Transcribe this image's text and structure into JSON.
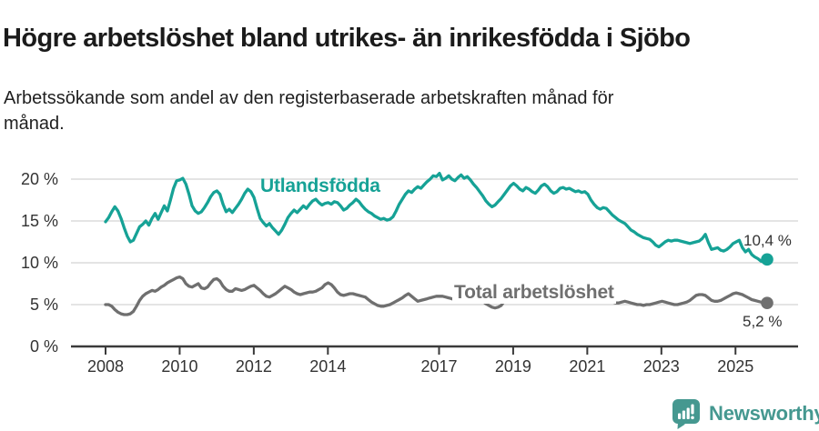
{
  "header": {
    "title": "Högre arbetslöshet bland utrikes- än inrikesfödda i Sjöbo",
    "subtitle_line1": "Arbetssökande som andel av den registerbaserade arbetskraften månad för",
    "subtitle_line2": "månad."
  },
  "chart_data": {
    "type": "line",
    "title": "Högre arbetslöshet bland utrikes- än inrikesfödda i Sjöbo",
    "subtitle": "Arbetssökande som andel av den registerbaserade arbetskraften månad för månad.",
    "frequency": "monthly",
    "x_start_year": 2008,
    "x_tick_years": [
      2008,
      2010,
      2012,
      2014,
      2017,
      2019,
      2021,
      2023,
      2025
    ],
    "y_ticks": [
      {
        "value": 0,
        "label": "0 %"
      },
      {
        "value": 5,
        "label": "5 %"
      },
      {
        "value": 10,
        "label": "10 %"
      },
      {
        "value": 15,
        "label": "15 %"
      },
      {
        "value": 20,
        "label": "20 %"
      }
    ],
    "ylim": [
      0,
      21.5
    ],
    "grid": "horizontal",
    "legend_position": "inline-labels",
    "colors": {
      "grid": "#dcdcdc",
      "axis": "#3a3a3a",
      "tick_text": "#333333"
    },
    "series": [
      {
        "name": "Utlandsfödda",
        "color": "#16a296",
        "end_label": "10,4 %",
        "end_value": 10.4,
        "values": [
          14.9,
          15.4,
          16.1,
          16.7,
          16.2,
          15.3,
          14.2,
          13.2,
          12.5,
          12.7,
          13.5,
          14.3,
          14.6,
          15.0,
          14.5,
          15.3,
          15.9,
          15.2,
          16.0,
          16.8,
          16.2,
          17.5,
          18.9,
          19.8,
          19.9,
          20.1,
          19.4,
          18.2,
          16.8,
          16.2,
          15.9,
          16.1,
          16.6,
          17.2,
          17.9,
          18.4,
          18.6,
          18.2,
          17.0,
          16.1,
          16.4,
          16.0,
          16.5,
          17.0,
          17.6,
          18.3,
          18.8,
          18.5,
          17.8,
          16.5,
          15.3,
          14.8,
          14.4,
          14.7,
          14.2,
          13.8,
          13.4,
          13.9,
          14.6,
          15.4,
          15.9,
          16.3,
          16.0,
          16.4,
          16.8,
          16.5,
          17.0,
          17.4,
          17.6,
          17.2,
          16.9,
          17.1,
          17.2,
          17.0,
          17.3,
          17.2,
          16.8,
          16.3,
          16.5,
          16.9,
          17.2,
          17.6,
          17.3,
          16.8,
          16.4,
          16.1,
          15.9,
          15.6,
          15.4,
          15.2,
          15.3,
          15.1,
          15.2,
          15.5,
          16.2,
          17.0,
          17.6,
          18.2,
          18.6,
          18.4,
          18.8,
          19.1,
          18.9,
          19.3,
          19.7,
          20.0,
          20.4,
          20.3,
          20.7,
          19.9,
          20.1,
          20.4,
          20.0,
          19.8,
          20.2,
          20.5,
          20.1,
          20.3,
          19.9,
          19.4,
          19.0,
          18.5,
          18.0,
          17.4,
          17.0,
          16.7,
          16.9,
          17.3,
          17.7,
          18.2,
          18.7,
          19.2,
          19.5,
          19.2,
          18.8,
          18.6,
          19.0,
          18.8,
          18.5,
          18.3,
          18.7,
          19.2,
          19.4,
          19.1,
          18.6,
          18.3,
          18.5,
          18.9,
          19.0,
          18.8,
          18.9,
          18.7,
          18.5,
          18.6,
          18.4,
          18.5,
          18.2,
          17.5,
          17.0,
          16.6,
          16.4,
          16.6,
          16.5,
          16.1,
          15.7,
          15.4,
          15.1,
          14.9,
          14.7,
          14.3,
          13.9,
          13.7,
          13.4,
          13.2,
          13.0,
          12.9,
          12.8,
          12.5,
          12.1,
          11.9,
          12.2,
          12.5,
          12.7,
          12.6,
          12.7,
          12.7,
          12.6,
          12.5,
          12.4,
          12.3,
          12.4,
          12.5,
          12.6,
          12.9,
          13.4,
          12.4,
          11.6,
          11.7,
          11.8,
          11.5,
          11.4,
          11.6,
          11.9,
          12.3,
          12.5,
          12.7,
          11.8,
          11.3,
          11.6,
          11.0,
          10.7,
          10.5,
          10.2,
          10.1,
          10.4
        ]
      },
      {
        "name": "Total arbetslöshet",
        "color": "#6f6f6f",
        "end_label": "5,2 %",
        "end_value": 5.2,
        "values": [
          5.0,
          5.0,
          4.8,
          4.4,
          4.1,
          3.9,
          3.8,
          3.8,
          3.9,
          4.2,
          4.8,
          5.5,
          6.0,
          6.3,
          6.5,
          6.7,
          6.6,
          6.8,
          7.1,
          7.3,
          7.6,
          7.8,
          8.0,
          8.2,
          8.3,
          8.1,
          7.5,
          7.2,
          7.1,
          7.3,
          7.5,
          7.0,
          6.9,
          7.1,
          7.6,
          8.0,
          8.1,
          7.8,
          7.2,
          6.8,
          6.6,
          6.6,
          6.9,
          6.8,
          6.7,
          6.8,
          7.0,
          7.2,
          7.3,
          7.0,
          6.7,
          6.3,
          6.0,
          5.9,
          6.1,
          6.3,
          6.6,
          6.9,
          7.2,
          7.0,
          6.8,
          6.5,
          6.3,
          6.2,
          6.3,
          6.4,
          6.5,
          6.5,
          6.6,
          6.8,
          7.0,
          7.4,
          7.6,
          7.4,
          7.0,
          6.5,
          6.2,
          6.1,
          6.2,
          6.3,
          6.3,
          6.2,
          6.1,
          6.0,
          5.9,
          5.6,
          5.3,
          5.1,
          4.9,
          4.8,
          4.8,
          4.9,
          5.0,
          5.2,
          5.4,
          5.6,
          5.8,
          6.1,
          6.3,
          6.0,
          5.7,
          5.4,
          5.5,
          5.6,
          5.7,
          5.8,
          5.9,
          6.0,
          6.0,
          6.0,
          5.9,
          5.8,
          5.7,
          5.6,
          5.7,
          5.8,
          5.7,
          5.6,
          5.5,
          5.6,
          5.8,
          5.6,
          5.4,
          5.1,
          4.9,
          4.7,
          4.6,
          4.7,
          4.9,
          5.4,
          6.1,
          6.8,
          7.1,
          6.9,
          6.5,
          6.1,
          5.8,
          5.6,
          5.5,
          5.5,
          5.6,
          5.7,
          5.9,
          6.1,
          6.3,
          6.4,
          6.7,
          7.0,
          7.2,
          7.2,
          7.1,
          6.9,
          6.7,
          6.5,
          6.4,
          6.3,
          6.2,
          6.1,
          5.9,
          5.8,
          5.7,
          5.6,
          5.5,
          5.4,
          5.3,
          5.2,
          5.2,
          5.3,
          5.4,
          5.3,
          5.2,
          5.1,
          5.0,
          5.0,
          4.9,
          5.0,
          5.0,
          5.1,
          5.2,
          5.3,
          5.4,
          5.3,
          5.2,
          5.1,
          5.0,
          5.0,
          5.1,
          5.2,
          5.3,
          5.5,
          5.8,
          6.1,
          6.2,
          6.2,
          6.1,
          5.8,
          5.5,
          5.4,
          5.4,
          5.5,
          5.7,
          5.9,
          6.1,
          6.3,
          6.4,
          6.3,
          6.2,
          6.0,
          5.8,
          5.6,
          5.5,
          5.4,
          5.3,
          5.2,
          5.2
        ]
      }
    ]
  },
  "footer": {
    "brand": "Newsworthy",
    "logo_color": "#459890"
  }
}
